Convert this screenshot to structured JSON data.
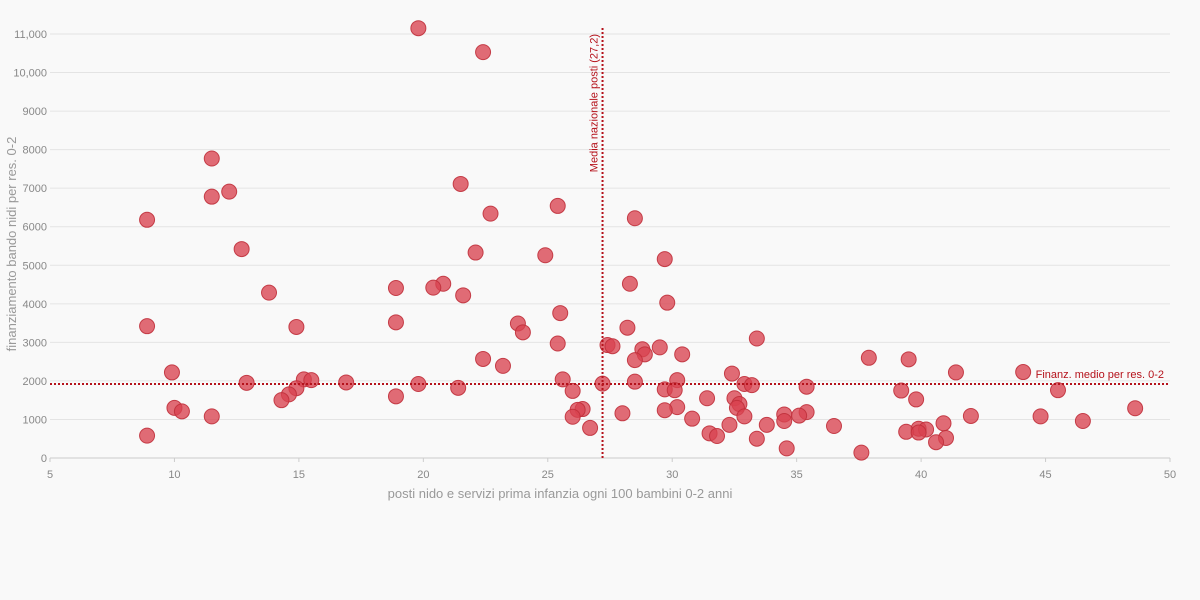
{
  "chart_data": {
    "type": "scatter",
    "title": "",
    "xlabel": "posti nido e servizi prima infanzia ogni 100 bambini 0-2 anni",
    "ylabel": "finanziamento bando nidi per res. 0-2",
    "xlim": [
      5,
      50
    ],
    "ylim": [
      0,
      11000
    ],
    "x_ticks": [
      5,
      10,
      15,
      20,
      25,
      30,
      35,
      40,
      45,
      50
    ],
    "y_ticks": [
      0,
      1000,
      2000,
      3000,
      4000,
      5000,
      6000,
      7000,
      8000,
      9000,
      10000,
      11000
    ],
    "y_tick_labels": [
      "0",
      "1000",
      "2000",
      "3000",
      "4000",
      "5000",
      "6000",
      "7000",
      "8000",
      "9000",
      "10,000",
      "11,000"
    ],
    "grid": true,
    "reference_lines": [
      {
        "orientation": "vertical",
        "value": 27.2,
        "label": "Media nazionale posti (27,2)"
      },
      {
        "orientation": "horizontal",
        "value": 1920,
        "label": "Finanz. medio per res. 0-2"
      }
    ],
    "colors": {
      "points": "#d9434f",
      "point_stroke": "#c0303b",
      "reference": "#b5121b"
    },
    "series": [
      {
        "points": [
          [
            19.8,
            11150
          ],
          [
            22.4,
            10530
          ],
          [
            11.5,
            7770
          ],
          [
            21.5,
            7110
          ],
          [
            12.2,
            6910
          ],
          [
            11.5,
            6780
          ],
          [
            25.4,
            6540
          ],
          [
            22.7,
            6340
          ],
          [
            28.5,
            6220
          ],
          [
            8.9,
            6180
          ],
          [
            12.7,
            5420
          ],
          [
            22.1,
            5330
          ],
          [
            24.9,
            5260
          ],
          [
            29.7,
            5160
          ],
          [
            20.8,
            4520
          ],
          [
            28.3,
            4520
          ],
          [
            18.9,
            4410
          ],
          [
            20.4,
            4420
          ],
          [
            13.8,
            4290
          ],
          [
            21.6,
            4220
          ],
          [
            29.8,
            4030
          ],
          [
            25.5,
            3760
          ],
          [
            18.9,
            3520
          ],
          [
            23.8,
            3490
          ],
          [
            8.9,
            3420
          ],
          [
            14.9,
            3400
          ],
          [
            28.2,
            3380
          ],
          [
            24.0,
            3260
          ],
          [
            33.4,
            3100
          ],
          [
            25.4,
            2970
          ],
          [
            27.4,
            2930
          ],
          [
            27.6,
            2900
          ],
          [
            29.5,
            2870
          ],
          [
            28.8,
            2820
          ],
          [
            28.9,
            2690
          ],
          [
            30.4,
            2690
          ],
          [
            37.9,
            2600
          ],
          [
            22.4,
            2570
          ],
          [
            39.5,
            2560
          ],
          [
            28.5,
            2540
          ],
          [
            23.2,
            2390
          ],
          [
            9.9,
            2220
          ],
          [
            32.4,
            2190
          ],
          [
            41.4,
            2220
          ],
          [
            44.1,
            2230
          ],
          [
            15.2,
            2040
          ],
          [
            15.5,
            2020
          ],
          [
            25.6,
            2040
          ],
          [
            30.2,
            2020
          ],
          [
            28.5,
            1980
          ],
          [
            12.9,
            1950
          ],
          [
            16.9,
            1960
          ],
          [
            19.8,
            1920
          ],
          [
            27.2,
            1930
          ],
          [
            32.9,
            1920
          ],
          [
            33.2,
            1890
          ],
          [
            35.4,
            1850
          ],
          [
            21.4,
            1820
          ],
          [
            14.9,
            1810
          ],
          [
            26.0,
            1740
          ],
          [
            29.7,
            1780
          ],
          [
            30.1,
            1760
          ],
          [
            39.2,
            1750
          ],
          [
            45.5,
            1760
          ],
          [
            14.6,
            1650
          ],
          [
            18.9,
            1600
          ],
          [
            31.4,
            1550
          ],
          [
            14.3,
            1500
          ],
          [
            32.5,
            1550
          ],
          [
            39.8,
            1520
          ],
          [
            32.7,
            1400
          ],
          [
            32.6,
            1300
          ],
          [
            30.2,
            1320
          ],
          [
            29.7,
            1240
          ],
          [
            10.0,
            1300
          ],
          [
            10.3,
            1210
          ],
          [
            26.4,
            1270
          ],
          [
            26.2,
            1250
          ],
          [
            48.6,
            1290
          ],
          [
            11.5,
            1080
          ],
          [
            26.0,
            1070
          ],
          [
            28.0,
            1160
          ],
          [
            35.4,
            1190
          ],
          [
            34.5,
            1130
          ],
          [
            35.1,
            1100
          ],
          [
            42.0,
            1090
          ],
          [
            44.8,
            1080
          ],
          [
            32.9,
            1080
          ],
          [
            30.8,
            1020
          ],
          [
            34.5,
            960
          ],
          [
            46.5,
            960
          ],
          [
            40.9,
            900
          ],
          [
            32.3,
            860
          ],
          [
            33.8,
            860
          ],
          [
            36.5,
            830
          ],
          [
            26.7,
            780
          ],
          [
            39.9,
            760
          ],
          [
            40.2,
            740
          ],
          [
            39.4,
            680
          ],
          [
            39.9,
            660
          ],
          [
            31.5,
            640
          ],
          [
            8.9,
            580
          ],
          [
            31.8,
            570
          ],
          [
            33.4,
            500
          ],
          [
            41.0,
            520
          ],
          [
            40.6,
            410
          ],
          [
            34.6,
            250
          ],
          [
            37.6,
            140
          ]
        ]
      }
    ]
  }
}
